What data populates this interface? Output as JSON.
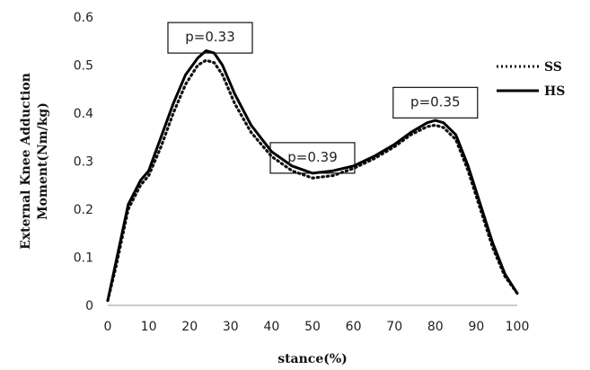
{
  "chart_data": {
    "type": "line",
    "title": "",
    "xlabel": "stance(%)",
    "ylabel": [
      "External Knee Adduction",
      "Moment(Nm/kg)"
    ],
    "xlim": [
      0,
      100
    ],
    "ylim": [
      0,
      0.6
    ],
    "xticks": [
      0,
      10,
      20,
      30,
      40,
      50,
      60,
      70,
      80,
      90,
      100
    ],
    "yticks": [
      0,
      0.1,
      0.2,
      0.3,
      0.4,
      0.5,
      0.6
    ],
    "ytick_labels": [
      "0",
      "0.1",
      "0.2",
      "0.3",
      "0.4",
      "0.5",
      "0.6"
    ],
    "grid": false,
    "legend_position": "right",
    "series": [
      {
        "name": "SS",
        "style": "dotted",
        "color": "#111111",
        "x": [
          0,
          2,
          5,
          8,
          10,
          13,
          16,
          19,
          22,
          24,
          26,
          28,
          31,
          35,
          40,
          45,
          50,
          55,
          60,
          65,
          70,
          74,
          78,
          80,
          82,
          85,
          88,
          91,
          94,
          97,
          100
        ],
        "y": [
          0.01,
          0.08,
          0.2,
          0.25,
          0.27,
          0.33,
          0.4,
          0.46,
          0.5,
          0.51,
          0.505,
          0.48,
          0.42,
          0.36,
          0.31,
          0.28,
          0.265,
          0.27,
          0.285,
          0.305,
          0.33,
          0.355,
          0.372,
          0.375,
          0.37,
          0.345,
          0.28,
          0.2,
          0.12,
          0.06,
          0.025
        ]
      },
      {
        "name": "HS",
        "style": "solid",
        "color": "#000000",
        "x": [
          0,
          2,
          5,
          8,
          10,
          13,
          16,
          19,
          22,
          24,
          26,
          28,
          31,
          35,
          40,
          45,
          50,
          55,
          60,
          65,
          70,
          74,
          78,
          80,
          82,
          85,
          88,
          91,
          94,
          97,
          100
        ],
        "y": [
          0.01,
          0.09,
          0.21,
          0.26,
          0.28,
          0.35,
          0.42,
          0.48,
          0.515,
          0.53,
          0.525,
          0.5,
          0.44,
          0.375,
          0.32,
          0.29,
          0.275,
          0.28,
          0.29,
          0.31,
          0.335,
          0.36,
          0.38,
          0.385,
          0.38,
          0.355,
          0.29,
          0.21,
          0.13,
          0.065,
          0.025
        ]
      }
    ],
    "annotations": [
      {
        "text": "p=0.33",
        "x": 25,
        "y": 0.54
      },
      {
        "text": "p=0.39",
        "x": 50,
        "y": 0.29
      },
      {
        "text": "p=0.35",
        "x": 80,
        "y": 0.405
      }
    ]
  }
}
